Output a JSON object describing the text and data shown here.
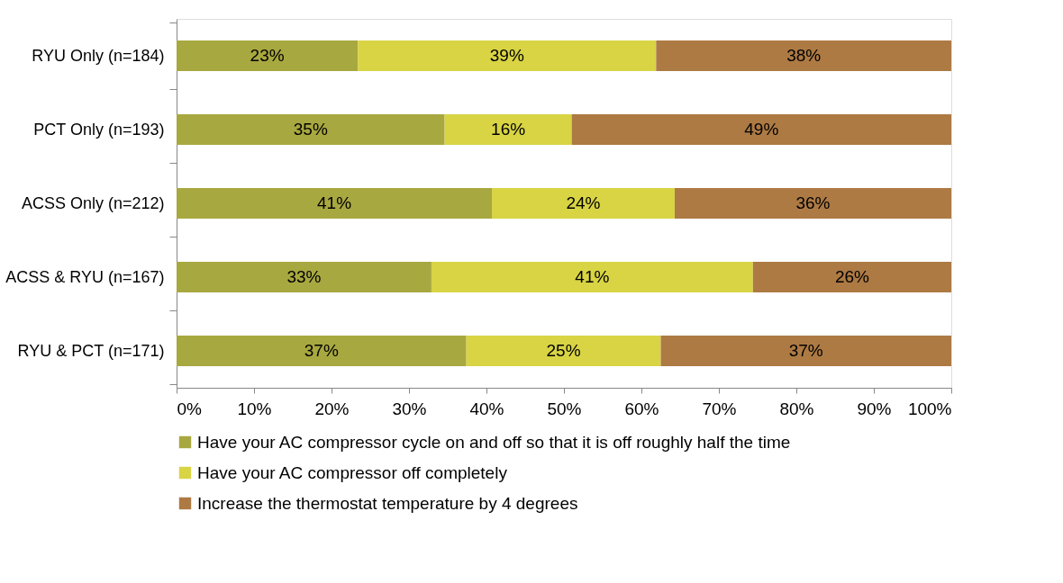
{
  "chart_data": {
    "type": "bar",
    "orientation": "horizontal",
    "stacked": true,
    "categories": [
      "RYU Only (n=184)",
      "PCT Only (n=193)",
      "ACSS Only (n=212)",
      "ACSS & RYU (n=167)",
      "RYU & PCT (n=171)"
    ],
    "series": [
      {
        "name": "Have your AC compressor cycle on and off so that it is off roughly half the time",
        "color": "#a8a840",
        "values": [
          23.4,
          34.6,
          40.7,
          32.9,
          37.4
        ],
        "value_labels": [
          "23%",
          "35%",
          "41%",
          "33%",
          "37%"
        ]
      },
      {
        "name": "Have your AC compressor off completely",
        "color": "#d8d444",
        "values": [
          38.5,
          16.4,
          23.6,
          41.5,
          25.1
        ],
        "value_labels": [
          "39%",
          "16%",
          "24%",
          "41%",
          "25%"
        ]
      },
      {
        "name": "Increase the thermostat temperature by 4 degrees",
        "color": "#ad7a44",
        "values": [
          38.1,
          49.0,
          35.7,
          25.6,
          37.5
        ],
        "value_labels": [
          "38%",
          "49%",
          "36%",
          "26%",
          "37%"
        ]
      }
    ],
    "xlim": [
      0,
      100
    ],
    "xticks": [
      {
        "value": 0,
        "label": "0%"
      },
      {
        "value": 10,
        "label": "10%"
      },
      {
        "value": 20,
        "label": "20%"
      },
      {
        "value": 30,
        "label": "30%"
      },
      {
        "value": 40,
        "label": "40%"
      },
      {
        "value": 50,
        "label": "50%"
      },
      {
        "value": 60,
        "label": "60%"
      },
      {
        "value": 70,
        "label": "70%"
      },
      {
        "value": 80,
        "label": "80%"
      },
      {
        "value": 90,
        "label": "90%"
      },
      {
        "value": 100,
        "label": "100%"
      }
    ],
    "grid": false,
    "legend": "bottom"
  }
}
